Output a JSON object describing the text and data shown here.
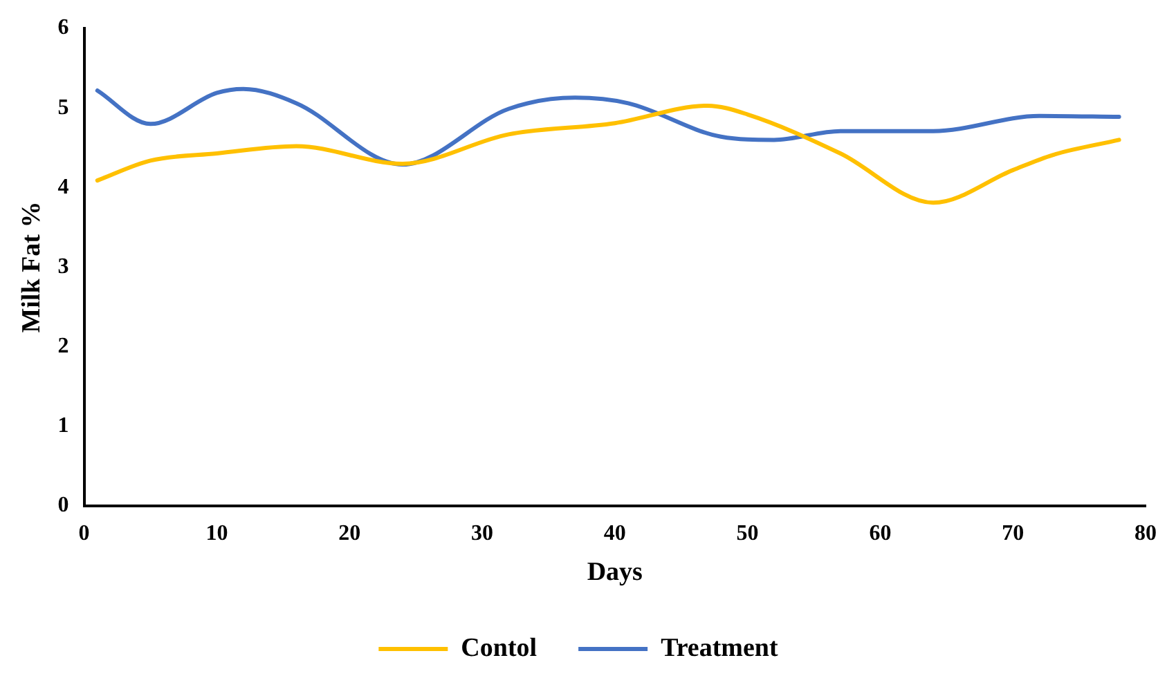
{
  "chart_data": {
    "type": "line",
    "xlabel": "Days",
    "ylabel": "Milk Fat %",
    "xlim": [
      0,
      80
    ],
    "xticks": [
      0,
      10,
      20,
      30,
      40,
      50,
      60,
      70,
      80
    ],
    "ylim": [
      0,
      6
    ],
    "yticks": [
      0,
      1,
      2,
      3,
      4,
      5,
      6
    ],
    "grid": false,
    "legend": "bottom",
    "marker": "none",
    "series": [
      {
        "name": "Contol",
        "color": "#ffc000",
        "x": [
          1,
          5,
          10,
          16,
          24,
          32,
          40,
          47,
          50,
          57,
          64,
          70,
          73,
          78
        ],
        "values": [
          4.09,
          4.34,
          4.43,
          4.52,
          4.3,
          4.67,
          4.81,
          5.03,
          4.92,
          4.43,
          3.81,
          4.22,
          4.41,
          4.6
        ]
      },
      {
        "name": "Treatment",
        "color": "#4472c4",
        "x": [
          1,
          5,
          10,
          12,
          16,
          24,
          32,
          37,
          41,
          48,
          52,
          57,
          64,
          72,
          78
        ],
        "values": [
          5.22,
          4.8,
          5.19,
          5.24,
          5.06,
          4.29,
          4.99,
          5.13,
          5.06,
          4.64,
          4.6,
          4.71,
          4.71,
          4.9,
          4.89
        ]
      }
    ]
  }
}
